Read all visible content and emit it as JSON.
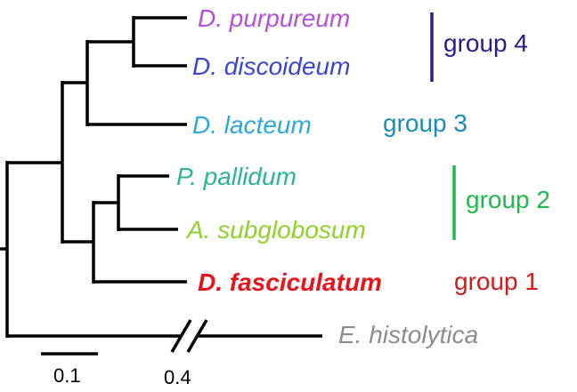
{
  "taxa": [
    {
      "label": "D. purpureum",
      "color": "#b44fd9"
    },
    {
      "label": "D. discoideum",
      "color": "#3b44d6"
    },
    {
      "label": "D. lacteum",
      "color": "#2aa8e0"
    },
    {
      "label": "P. pallidum",
      "color": "#2bb39a"
    },
    {
      "label": "A. subglobosum",
      "color": "#8fd12a"
    },
    {
      "label": "D. fasciculatum",
      "color": "#e8141b",
      "bold": true
    },
    {
      "label": "E. histolytica",
      "color": "#8c8c8c"
    }
  ],
  "groups": [
    {
      "label": "group 4",
      "color": "#2e1a8e",
      "bar": true
    },
    {
      "label": "group 3",
      "color": "#1a8cb8",
      "bar": false
    },
    {
      "label": "group 2",
      "color": "#1fb84a",
      "bar": true
    },
    {
      "label": "group 1",
      "color": "#d11a1a",
      "bar": false
    }
  ],
  "scale": {
    "short_label": "0.1",
    "break_label": "0.4"
  }
}
